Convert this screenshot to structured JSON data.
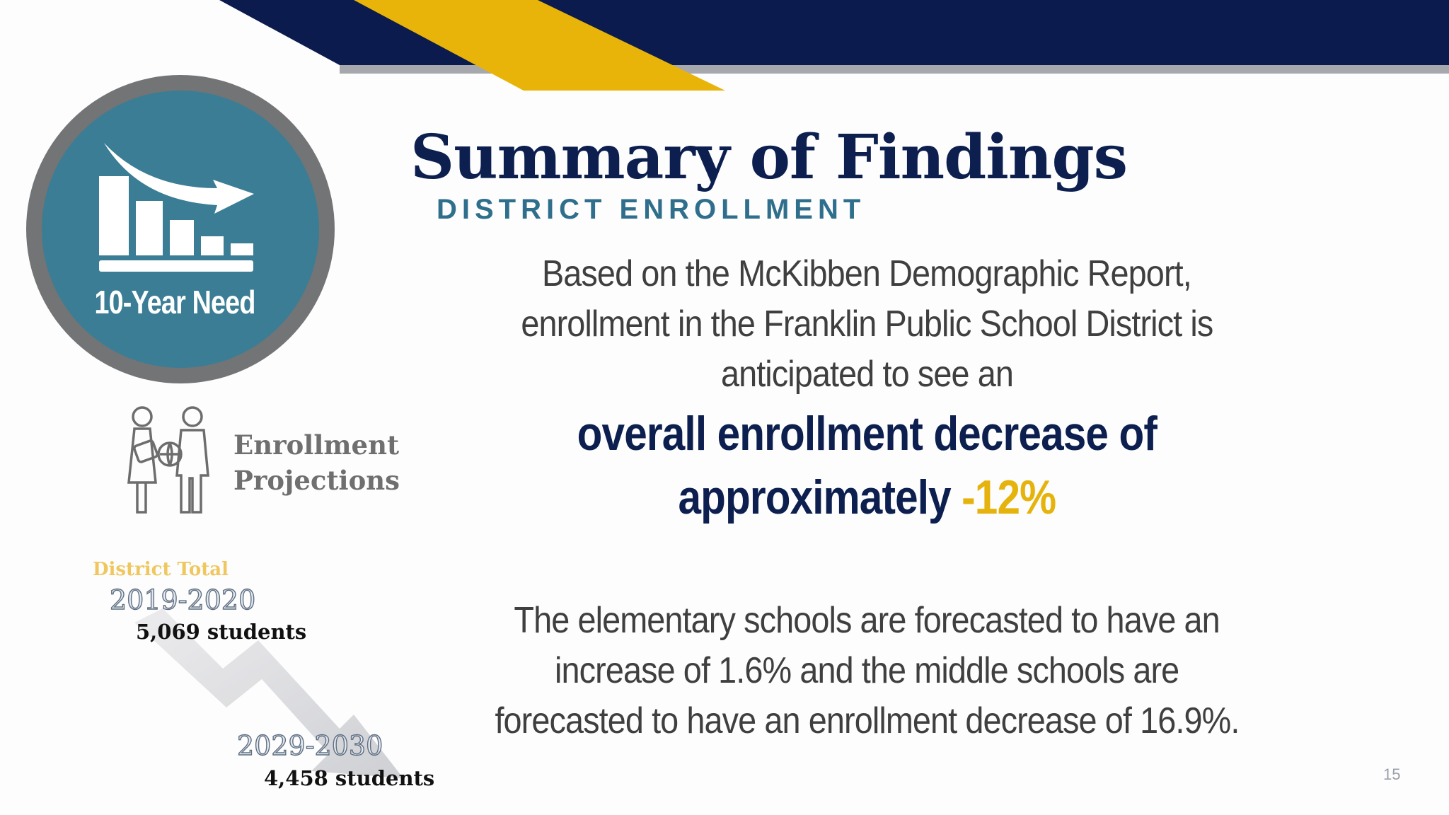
{
  "badge": {
    "label": "10-Year Need",
    "icon": "declining-bar-chart-icon"
  },
  "projections": {
    "label_line1": "Enrollment",
    "label_line2": "Projections",
    "icon": "students-icon"
  },
  "district": {
    "label": "District Total",
    "start_year": "2019-2020",
    "start_students": "5,069 students",
    "end_year": "2029-2030",
    "end_students": "4,458 students"
  },
  "title": "Summary of Findings",
  "subtitle": "DISTRICT ENROLLMENT",
  "paragraph1": {
    "line1": "Based on the McKibben Demographic Report,",
    "line2": "enrollment in the Franklin Public School District is",
    "line3": "anticipated to see an"
  },
  "highlight": {
    "line1": "overall enrollment decrease of",
    "line2": "approximately",
    "percent": "-12%"
  },
  "paragraph2": {
    "line1": "The elementary schools are forecasted to have an",
    "line2": "increase of 1.6% and the middle schools are",
    "line3": "forecasted to have an enrollment decrease of 16.9%."
  },
  "page_number": "15",
  "colors": {
    "navy": "#0c1f4f",
    "gold": "#e6b30c",
    "teal": "#3a7a92",
    "gray": "#6f6f6f"
  }
}
